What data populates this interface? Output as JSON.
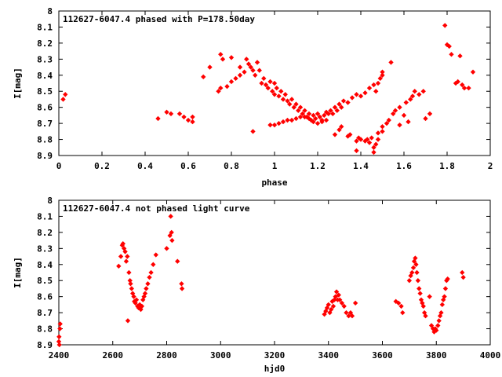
{
  "chart_data": [
    {
      "type": "scatter",
      "title": "112627-6047.4 phased with P=178.50day",
      "xlabel": "phase",
      "ylabel": "I[mag]",
      "xlim": [
        0,
        2
      ],
      "ylim": [
        8.9,
        8
      ],
      "y_inverted": true,
      "xticks": [
        "0",
        "0.2",
        "0.4",
        "0.6",
        "0.8",
        "1",
        "1.2",
        "1.4",
        "1.6",
        "1.8",
        "2"
      ],
      "yticks": [
        "8",
        "8.1",
        "8.2",
        "8.3",
        "8.4",
        "8.5",
        "8.6",
        "8.7",
        "8.8",
        "8.9"
      ],
      "grid": false,
      "marker_color": "#ff0000",
      "series": [
        {
          "points": [
            [
              0.02,
              8.55
            ],
            [
              0.03,
              8.52
            ],
            [
              0.46,
              8.67
            ],
            [
              0.5,
              8.63
            ],
            [
              0.52,
              8.64
            ],
            [
              0.56,
              8.64
            ],
            [
              0.58,
              8.66
            ],
            [
              0.6,
              8.68
            ],
            [
              0.62,
              8.66
            ],
            [
              0.62,
              8.69
            ],
            [
              0.67,
              8.41
            ],
            [
              0.7,
              8.35
            ],
            [
              0.74,
              8.5
            ],
            [
              0.75,
              8.48
            ],
            [
              0.75,
              8.27
            ],
            [
              0.76,
              8.3
            ],
            [
              0.78,
              8.47
            ],
            [
              0.8,
              8.44
            ],
            [
              0.8,
              8.29
            ],
            [
              0.82,
              8.42
            ],
            [
              0.84,
              8.4
            ],
            [
              0.84,
              8.35
            ],
            [
              0.86,
              8.38
            ],
            [
              0.87,
              8.3
            ],
            [
              0.88,
              8.33
            ],
            [
              0.89,
              8.35
            ],
            [
              0.9,
              8.75
            ],
            [
              0.9,
              8.37
            ],
            [
              0.91,
              8.4
            ],
            [
              0.92,
              8.32
            ],
            [
              0.93,
              8.37
            ],
            [
              0.94,
              8.45
            ],
            [
              0.95,
              8.42
            ],
            [
              0.96,
              8.46
            ],
            [
              0.97,
              8.48
            ],
            [
              0.98,
              8.44
            ],
            [
              0.99,
              8.5
            ],
            [
              1.0,
              8.52
            ],
            [
              1.0,
              8.45
            ],
            [
              1.01,
              8.48
            ],
            [
              1.02,
              8.53
            ],
            [
              1.03,
              8.5
            ],
            [
              1.04,
              8.55
            ],
            [
              1.05,
              8.52
            ],
            [
              1.06,
              8.56
            ],
            [
              1.07,
              8.58
            ],
            [
              1.08,
              8.55
            ],
            [
              1.09,
              8.6
            ],
            [
              1.1,
              8.58
            ],
            [
              1.11,
              8.62
            ],
            [
              1.12,
              8.6
            ],
            [
              1.13,
              8.64
            ],
            [
              1.14,
              8.62
            ],
            [
              1.15,
              8.66
            ],
            [
              1.16,
              8.64
            ],
            [
              1.17,
              8.68
            ],
            [
              1.18,
              8.65
            ],
            [
              1.19,
              8.67
            ],
            [
              1.2,
              8.64
            ],
            [
              1.21,
              8.66
            ],
            [
              1.22,
              8.68
            ],
            [
              1.23,
              8.65
            ],
            [
              1.24,
              8.63
            ],
            [
              1.25,
              8.64
            ],
            [
              1.26,
              8.62
            ],
            [
              1.27,
              8.64
            ],
            [
              1.28,
              8.6
            ],
            [
              1.29,
              8.62
            ],
            [
              1.3,
              8.58
            ],
            [
              1.31,
              8.6
            ],
            [
              1.32,
              8.56
            ],
            [
              1.34,
              8.57
            ],
            [
              1.36,
              8.54
            ],
            [
              1.38,
              8.52
            ],
            [
              1.4,
              8.53
            ],
            [
              1.42,
              8.51
            ],
            [
              1.44,
              8.48
            ],
            [
              1.46,
              8.46
            ],
            [
              1.47,
              8.5
            ],
            [
              1.48,
              8.45
            ],
            [
              1.49,
              8.42
            ],
            [
              1.5,
              8.4
            ],
            [
              1.5,
              8.38
            ],
            [
              0.98,
              8.71
            ],
            [
              1.0,
              8.71
            ],
            [
              1.02,
              8.7
            ],
            [
              1.04,
              8.69
            ],
            [
              1.06,
              8.68
            ],
            [
              1.08,
              8.68
            ],
            [
              1.1,
              8.67
            ],
            [
              1.12,
              8.66
            ],
            [
              1.14,
              8.66
            ],
            [
              1.16,
              8.67
            ],
            [
              1.18,
              8.69
            ],
            [
              1.2,
              8.7
            ],
            [
              1.22,
              8.69
            ],
            [
              1.24,
              8.68
            ],
            [
              1.28,
              8.77
            ],
            [
              1.3,
              8.74
            ],
            [
              1.31,
              8.72
            ],
            [
              1.34,
              8.78
            ],
            [
              1.35,
              8.77
            ],
            [
              1.38,
              8.81
            ],
            [
              1.38,
              8.87
            ],
            [
              1.39,
              8.79
            ],
            [
              1.4,
              8.8
            ],
            [
              1.42,
              8.81
            ],
            [
              1.43,
              8.8
            ],
            [
              1.44,
              8.82
            ],
            [
              1.45,
              8.79
            ],
            [
              1.46,
              8.85
            ],
            [
              1.46,
              8.88
            ],
            [
              1.47,
              8.83
            ],
            [
              1.48,
              8.76
            ],
            [
              1.48,
              8.8
            ],
            [
              1.5,
              8.75
            ],
            [
              1.5,
              8.72
            ],
            [
              1.52,
              8.7
            ],
            [
              1.53,
              8.68
            ],
            [
              1.54,
              8.32
            ],
            [
              1.55,
              8.64
            ],
            [
              1.56,
              8.62
            ],
            [
              1.58,
              8.6
            ],
            [
              1.58,
              8.71
            ],
            [
              1.6,
              8.65
            ],
            [
              1.61,
              8.57
            ],
            [
              1.62,
              8.69
            ],
            [
              1.63,
              8.55
            ],
            [
              1.64,
              8.53
            ],
            [
              1.65,
              8.5
            ],
            [
              1.67,
              8.52
            ],
            [
              1.69,
              8.5
            ],
            [
              1.7,
              8.67
            ],
            [
              1.72,
              8.64
            ],
            [
              1.79,
              8.09
            ],
            [
              1.8,
              8.21
            ],
            [
              1.81,
              8.22
            ],
            [
              1.82,
              8.27
            ],
            [
              1.84,
              8.45
            ],
            [
              1.85,
              8.44
            ],
            [
              1.86,
              8.28
            ],
            [
              1.87,
              8.46
            ],
            [
              1.88,
              8.48
            ],
            [
              1.9,
              8.48
            ],
            [
              1.92,
              8.38
            ]
          ]
        }
      ]
    },
    {
      "type": "scatter",
      "title": "112627-6047.4 not phased light curve",
      "xlabel": "hjd0",
      "ylabel": "I[mag]",
      "xlim": [
        2400,
        4000
      ],
      "ylim": [
        8.9,
        8
      ],
      "y_inverted": true,
      "xticks": [
        "2400",
        "2600",
        "2800",
        "3000",
        "3200",
        "3400",
        "3600",
        "3800",
        "4000"
      ],
      "yticks": [
        "8",
        "8.1",
        "8.2",
        "8.3",
        "8.4",
        "8.5",
        "8.6",
        "8.7",
        "8.8",
        "8.9"
      ],
      "grid": false,
      "marker_color": "#ff0000",
      "series": [
        {
          "points": [
            [
              2400,
              8.88
            ],
            [
              2401,
              8.85
            ],
            [
              2402,
              8.9
            ],
            [
              2404,
              8.8
            ],
            [
              2405,
              8.77
            ],
            [
              2622,
              8.41
            ],
            [
              2630,
              8.35
            ],
            [
              2635,
              8.28
            ],
            [
              2638,
              8.27
            ],
            [
              2642,
              8.3
            ],
            [
              2646,
              8.32
            ],
            [
              2650,
              8.38
            ],
            [
              2654,
              8.35
            ],
            [
              2656,
              8.75
            ],
            [
              2660,
              8.45
            ],
            [
              2664,
              8.5
            ],
            [
              2666,
              8.52
            ],
            [
              2670,
              8.55
            ],
            [
              2674,
              8.58
            ],
            [
              2678,
              8.6
            ],
            [
              2680,
              8.63
            ],
            [
              2684,
              8.64
            ],
            [
              2688,
              8.62
            ],
            [
              2692,
              8.66
            ],
            [
              2696,
              8.67
            ],
            [
              2700,
              8.65
            ],
            [
              2704,
              8.68
            ],
            [
              2708,
              8.66
            ],
            [
              2712,
              8.62
            ],
            [
              2716,
              8.6
            ],
            [
              2720,
              8.58
            ],
            [
              2724,
              8.55
            ],
            [
              2730,
              8.52
            ],
            [
              2736,
              8.48
            ],
            [
              2742,
              8.45
            ],
            [
              2750,
              8.4
            ],
            [
              2760,
              8.34
            ],
            [
              2800,
              8.3
            ],
            [
              2812,
              8.22
            ],
            [
              2815,
              8.1
            ],
            [
              2818,
              8.2
            ],
            [
              2820,
              8.25
            ],
            [
              2840,
              8.38
            ],
            [
              2855,
              8.52
            ],
            [
              2857,
              8.55
            ],
            [
              3385,
              8.71
            ],
            [
              3390,
              8.69
            ],
            [
              3395,
              8.67
            ],
            [
              3400,
              8.65
            ],
            [
              3405,
              8.7
            ],
            [
              3410,
              8.68
            ],
            [
              3414,
              8.63
            ],
            [
              3418,
              8.66
            ],
            [
              3422,
              8.62
            ],
            [
              3426,
              8.6
            ],
            [
              3430,
              8.57
            ],
            [
              3434,
              8.62
            ],
            [
              3438,
              8.59
            ],
            [
              3442,
              8.62
            ],
            [
              3450,
              8.64
            ],
            [
              3458,
              8.66
            ],
            [
              3466,
              8.7
            ],
            [
              3475,
              8.72
            ],
            [
              3482,
              8.7
            ],
            [
              3488,
              8.72
            ],
            [
              3500,
              8.64
            ],
            [
              3650,
              8.63
            ],
            [
              3660,
              8.64
            ],
            [
              3670,
              8.66
            ],
            [
              3675,
              8.7
            ],
            [
              3700,
              8.5
            ],
            [
              3705,
              8.47
            ],
            [
              3710,
              8.45
            ],
            [
              3715,
              8.42
            ],
            [
              3718,
              8.38
            ],
            [
              3722,
              8.36
            ],
            [
              3725,
              8.4
            ],
            [
              3728,
              8.45
            ],
            [
              3732,
              8.5
            ],
            [
              3736,
              8.55
            ],
            [
              3740,
              8.58
            ],
            [
              3744,
              8.62
            ],
            [
              3748,
              8.64
            ],
            [
              3752,
              8.66
            ],
            [
              3756,
              8.7
            ],
            [
              3760,
              8.72
            ],
            [
              3775,
              8.6
            ],
            [
              3782,
              8.78
            ],
            [
              3788,
              8.8
            ],
            [
              3792,
              8.82
            ],
            [
              3796,
              8.8
            ],
            [
              3800,
              8.81
            ],
            [
              3806,
              8.78
            ],
            [
              3810,
              8.75
            ],
            [
              3814,
              8.72
            ],
            [
              3818,
              8.7
            ],
            [
              3822,
              8.65
            ],
            [
              3826,
              8.62
            ],
            [
              3830,
              8.6
            ],
            [
              3834,
              8.55
            ],
            [
              3838,
              8.5
            ],
            [
              3842,
              8.49
            ],
            [
              3896,
              8.45
            ],
            [
              3900,
              8.48
            ]
          ]
        }
      ]
    }
  ]
}
